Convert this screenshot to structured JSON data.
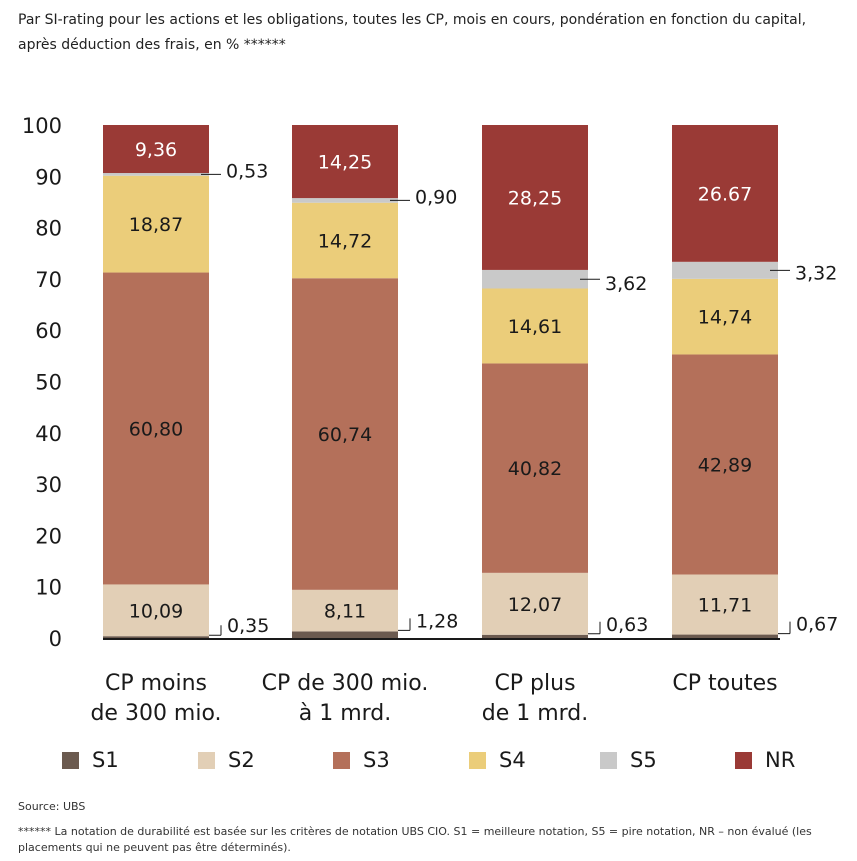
{
  "subtitle": "Par SI-rating pour les actions et les obligations, toutes les CP, mois en cours, pondération en fonction du capital, après déduction des frais, en % ******",
  "source": "Source: UBS",
  "footnote": "****** La notation de durabilité est basée sur les critères de notation UBS CIO. S1 = meilleure notation, S5 = pire notation, NR – non évalué (les placements qui ne peuvent pas être déterminés).",
  "colors": {
    "S1": "#6b5a4f",
    "S2": "#e2cfb6",
    "S3": "#b4705a",
    "S4": "#ebcd7a",
    "S5": "#c9c9c9",
    "NR": "#9a3a36"
  },
  "chart_data": {
    "type": "bar",
    "stacked": true,
    "ylim": [
      0,
      100
    ],
    "yticks": [
      "0",
      "10",
      "20",
      "30",
      "40",
      "50",
      "60",
      "70",
      "80",
      "90",
      "100"
    ],
    "categories": [
      [
        "CP moins",
        "de 300 mio."
      ],
      [
        "CP de 300 mio.",
        "à 1 mrd."
      ],
      [
        "CP plus",
        "de 1 mrd."
      ],
      [
        "CP toutes"
      ]
    ],
    "series": [
      {
        "name": "S1",
        "values": [
          0.35,
          1.28,
          0.63,
          0.67
        ],
        "labels": [
          "0,35",
          "1,28",
          "0,63",
          "0,67"
        ]
      },
      {
        "name": "S2",
        "values": [
          10.09,
          8.11,
          12.07,
          11.71
        ],
        "labels": [
          "10,09",
          "8,11",
          "12,07",
          "11,71"
        ]
      },
      {
        "name": "S3",
        "values": [
          60.8,
          60.74,
          40.82,
          42.89
        ],
        "labels": [
          "60,80",
          "60,74",
          "40,82",
          "42,89"
        ]
      },
      {
        "name": "S4",
        "values": [
          18.87,
          14.72,
          14.61,
          14.74
        ],
        "labels": [
          "18,87",
          "14,72",
          "14,61",
          "14,74"
        ]
      },
      {
        "name": "S5",
        "values": [
          0.53,
          0.9,
          3.62,
          3.32
        ],
        "labels": [
          "0,53",
          "0,90",
          "3,62",
          "3,32"
        ]
      },
      {
        "name": "NR",
        "values": [
          9.36,
          14.25,
          28.25,
          26.67
        ],
        "labels": [
          "9,36",
          "14,25",
          "28,25",
          "26.67"
        ]
      }
    ],
    "legend": [
      "S1",
      "S2",
      "S3",
      "S4",
      "S5",
      "NR"
    ],
    "legend_position": "bottom",
    "grid": false
  }
}
